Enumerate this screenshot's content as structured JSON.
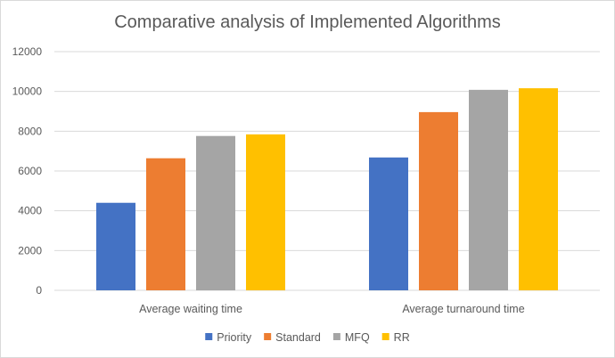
{
  "chart_data": {
    "type": "bar",
    "title": "Comparative analysis of Implemented Algorithms",
    "xlabel": "",
    "ylabel": "",
    "categories": [
      "Average waiting time",
      "Average turnaround time"
    ],
    "series": [
      {
        "name": "Priority",
        "color": "#4472c4",
        "values": [
          4400,
          6680
        ]
      },
      {
        "name": "Standard",
        "color": "#ed7d31",
        "values": [
          6640,
          8960
        ]
      },
      {
        "name": "MFQ",
        "color": "#a5a5a5",
        "values": [
          7760,
          10080
        ]
      },
      {
        "name": "RR",
        "color": "#ffc000",
        "values": [
          7840,
          10160
        ]
      }
    ],
    "ylim": [
      0,
      12000
    ],
    "yticks": [
      0,
      2000,
      4000,
      6000,
      8000,
      10000,
      12000
    ],
    "grid": true,
    "legend_position": "bottom"
  }
}
